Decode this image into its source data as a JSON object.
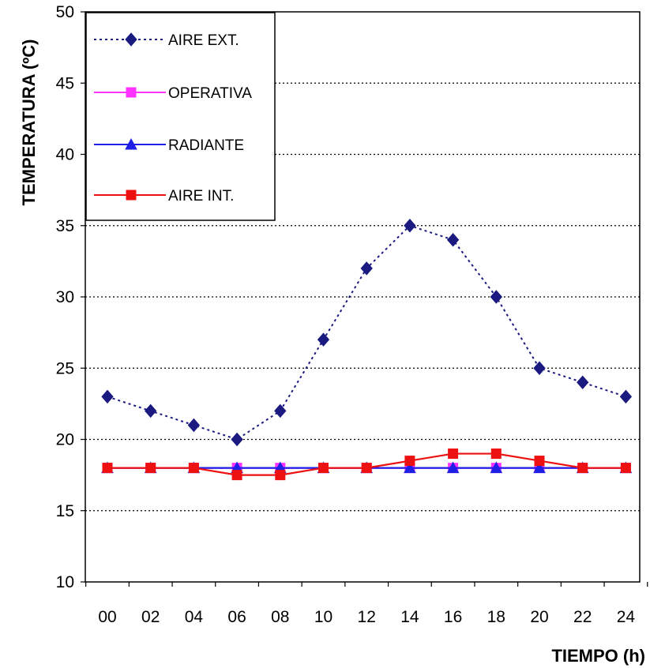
{
  "chart_data": {
    "type": "line",
    "title": "",
    "corner_text": "",
    "xlabel": "TIEMPO (h)",
    "ylabel": "TEMPERATURA (ºC)",
    "categories": [
      "00",
      "02",
      "04",
      "06",
      "08",
      "10",
      "12",
      "14",
      "16",
      "18",
      "20",
      "22",
      "24"
    ],
    "ylim": [
      10,
      50
    ],
    "yticks": [
      "10",
      "15",
      "20",
      "25",
      "30",
      "35",
      "40",
      "45",
      "50"
    ],
    "grid": "horizontal dotted",
    "legend_position": "top-left",
    "series": [
      {
        "name": "AIRE EXT.",
        "color": "#1a1a80",
        "marker": "diamond",
        "line": "dotted",
        "values": [
          23,
          22,
          21,
          20,
          22,
          27,
          32,
          35,
          34,
          30,
          25,
          24,
          23
        ]
      },
      {
        "name": "OPERATIVA",
        "color": "#ff33ff",
        "marker": "square",
        "line": "solid",
        "values": [
          18,
          18,
          18,
          18,
          18,
          18,
          18,
          18,
          18,
          18,
          18,
          18,
          18
        ]
      },
      {
        "name": "RADIANTE",
        "color": "#1f1fe6",
        "marker": "triangle",
        "line": "solid",
        "values": [
          18,
          18,
          18,
          18,
          18,
          18,
          18,
          18,
          18,
          18,
          18,
          18,
          18
        ]
      },
      {
        "name": "AIRE INT.",
        "color": "#ee1111",
        "marker": "square",
        "line": "solid",
        "values": [
          18,
          18,
          18,
          17.5,
          17.5,
          18,
          18,
          18.5,
          19,
          19,
          18.5,
          18,
          18
        ]
      }
    ]
  }
}
